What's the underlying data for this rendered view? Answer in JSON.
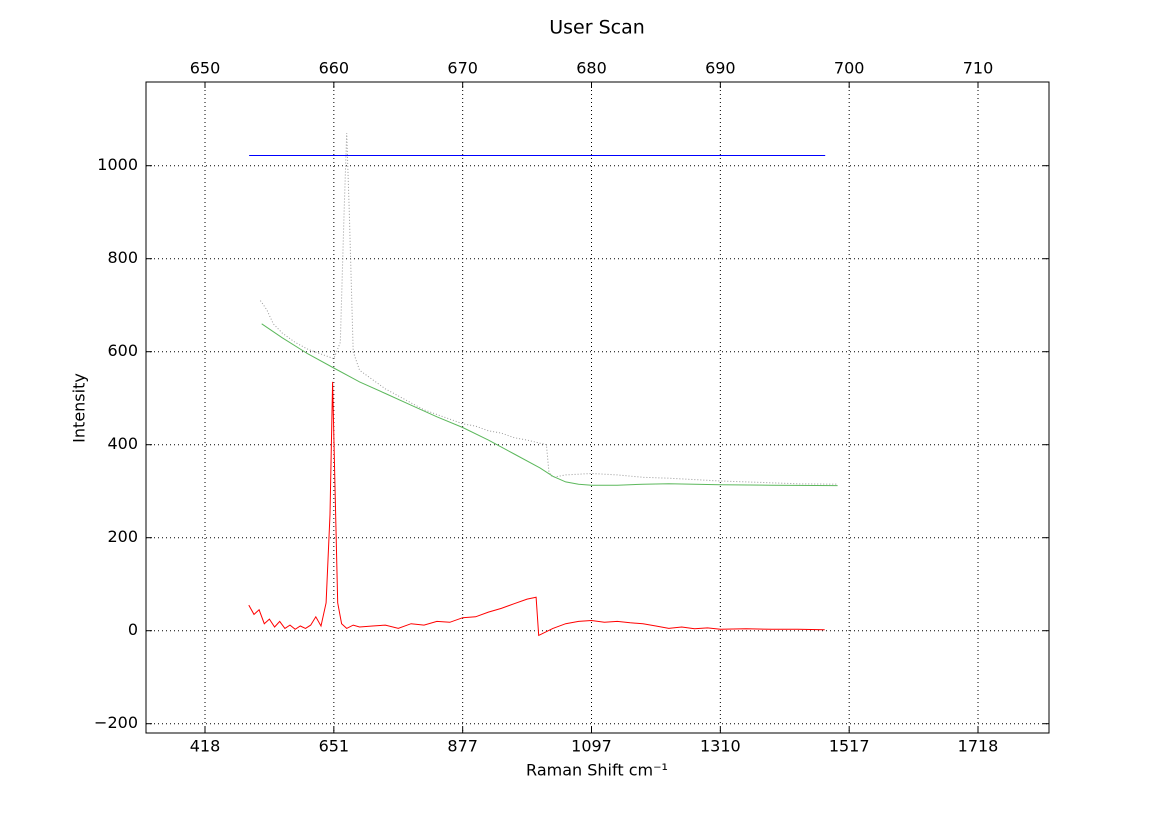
{
  "chart_data": {
    "type": "line",
    "title": "User Scan",
    "ylabel": "Intensity",
    "xlabel": "Raman Shift cm⁻¹",
    "xlim": [
      645.42,
      715.51
    ],
    "ylim": [
      -220,
      1180
    ],
    "x2ticks": [
      650,
      660,
      670,
      680,
      690,
      700,
      710
    ],
    "xticks": [
      {
        "value": 650,
        "label": "418"
      },
      {
        "value": 660,
        "label": "651"
      },
      {
        "value": 670,
        "label": "877"
      },
      {
        "value": 680,
        "label": "1097"
      },
      {
        "value": 690,
        "label": "1310"
      },
      {
        "value": 700,
        "label": "1517"
      },
      {
        "value": 710,
        "label": "1718"
      }
    ],
    "yticks": [
      {
        "value": -200,
        "label": "−200"
      },
      0,
      200,
      400,
      600,
      800,
      1000
    ],
    "grid": true,
    "series": [
      {
        "color": "#0000ff",
        "style": "solid",
        "x": [
          653.42,
          698.14
        ],
        "values": [
          1022,
          1022
        ]
      },
      {
        "color": "#999999",
        "style": "dotted",
        "x": [
          654.3,
          654.8,
          655.3,
          656,
          657,
          658,
          659,
          660,
          660.5,
          660.8,
          661.0,
          661.2,
          661.5,
          662,
          663,
          664,
          665,
          666,
          667,
          668,
          669,
          670,
          671,
          672,
          673,
          674,
          675,
          676.5,
          676.7,
          677,
          678,
          680,
          682,
          684,
          686,
          688,
          690,
          692,
          694,
          696,
          699.1
        ],
        "values": [
          710,
          690,
          660,
          640,
          620,
          605,
          595,
          585,
          620,
          900,
          1070,
          900,
          600,
          560,
          540,
          520,
          505,
          490,
          475,
          465,
          455,
          445,
          440,
          430,
          425,
          415,
          410,
          400,
          340,
          330,
          335,
          338,
          335,
          330,
          328,
          325,
          322,
          320,
          318,
          316,
          315
        ]
      },
      {
        "color": "#5cb85c",
        "style": "solid",
        "x": [
          654.4,
          656,
          658,
          660,
          662,
          664,
          666,
          668,
          670,
          672,
          674,
          676,
          677,
          678,
          679,
          680,
          682,
          684,
          686,
          688,
          690,
          694,
          699.1
        ],
        "values": [
          660,
          630,
          595,
          565,
          535,
          510,
          485,
          460,
          437,
          410,
          380,
          350,
          332,
          320,
          315,
          313,
          313,
          315,
          316,
          315,
          314,
          313,
          312
        ]
      },
      {
        "color": "#ff0000",
        "style": "solid",
        "x": [
          653.4,
          653.8,
          654.2,
          654.6,
          655.0,
          655.4,
          655.8,
          656.2,
          656.6,
          657.0,
          657.4,
          657.8,
          658.2,
          658.6,
          659.0,
          659.4,
          659.7,
          659.9,
          660.1,
          660.3,
          660.6,
          661.0,
          661.5,
          662,
          663,
          664,
          665,
          666,
          667,
          668,
          669,
          670,
          671,
          672,
          673,
          674,
          675,
          675.7,
          675.9,
          677,
          678,
          679,
          680,
          681,
          682,
          683,
          684,
          685,
          686,
          687,
          688,
          689,
          690,
          692,
          694,
          696,
          698.1
        ],
        "values": [
          55,
          35,
          45,
          15,
          25,
          8,
          20,
          5,
          12,
          3,
          10,
          5,
          12,
          30,
          10,
          60,
          250,
          535,
          300,
          60,
          15,
          5,
          12,
          8,
          10,
          12,
          5,
          15,
          12,
          20,
          18,
          28,
          30,
          40,
          48,
          58,
          68,
          72,
          -10,
          5,
          15,
          20,
          22,
          18,
          20,
          17,
          15,
          10,
          5,
          8,
          4,
          6,
          3,
          4,
          3,
          3,
          2
        ]
      }
    ]
  }
}
